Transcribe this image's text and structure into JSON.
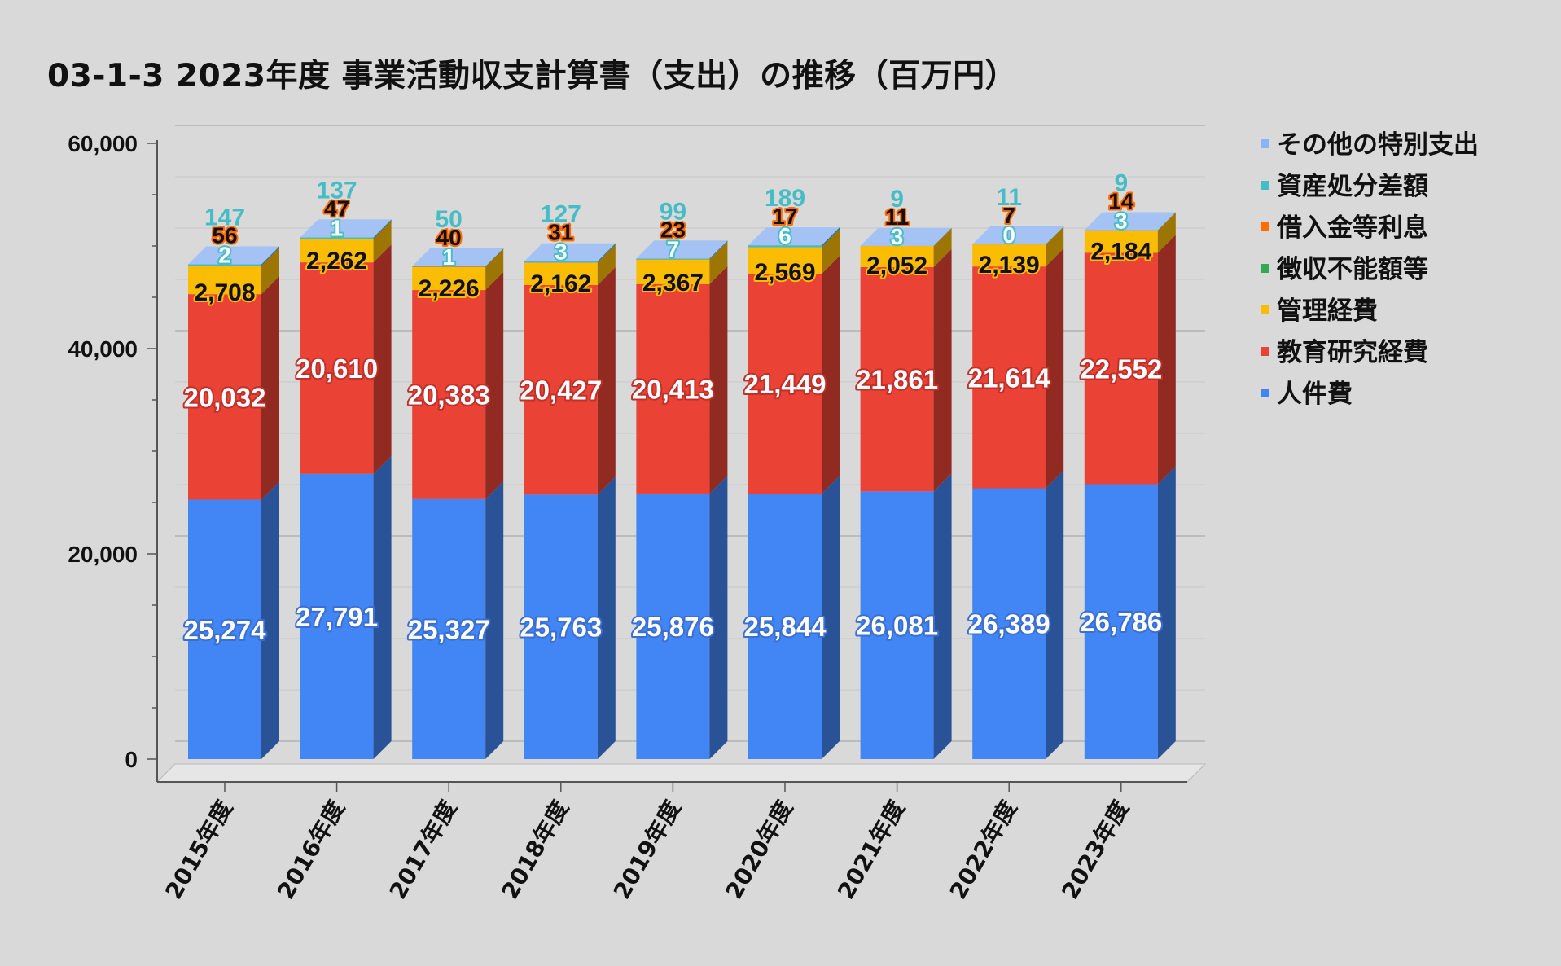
{
  "chart_data": {
    "type": "bar",
    "stacked": true,
    "title": "03-1-3 2023年度 事業活動収支計算書（支出）の推移（百万円）",
    "categories": [
      "2015年度",
      "2016年度",
      "2017年度",
      "2018年度",
      "2019年度",
      "2020年度",
      "2021年度",
      "2022年度",
      "2023年度"
    ],
    "ylim": [
      0,
      60000
    ],
    "yticks": [
      "0",
      "20,000",
      "40,000",
      "60,000"
    ],
    "grid": true,
    "legend_position": "right",
    "series": [
      {
        "name": "人件費",
        "color": "#4285f4",
        "values": [
          25274,
          27791,
          25327,
          25763,
          25876,
          25844,
          26081,
          26389,
          26786
        ],
        "labels": [
          "25,274",
          "27,791",
          "25,327",
          "25,763",
          "25,876",
          "25,844",
          "26,081",
          "26,389",
          "26,786"
        ]
      },
      {
        "name": "教育研究経費",
        "color": "#ea4335",
        "values": [
          20032,
          20610,
          20383,
          20427,
          20413,
          21449,
          21861,
          21614,
          22552
        ],
        "labels": [
          "20,032",
          "20,610",
          "20,383",
          "20,427",
          "20,413",
          "21,449",
          "21,861",
          "21,614",
          "22,552"
        ]
      },
      {
        "name": "管理経費",
        "color": "#fbbc04",
        "values": [
          2708,
          2262,
          2226,
          2162,
          2367,
          2569,
          2052,
          2139,
          2184
        ],
        "labels": [
          "2,708",
          "2,262",
          "2,226",
          "2,162",
          "2,367",
          "2,569",
          "2,052",
          "2,139",
          "2,184"
        ]
      },
      {
        "name": "徴収不能額等",
        "color": "#34a853",
        "values": [
          2,
          1,
          1,
          3,
          7,
          6,
          3,
          0,
          3
        ],
        "labels": [
          "2",
          "1",
          "1",
          "3",
          "7",
          "6",
          "3",
          "0",
          "3"
        ]
      },
      {
        "name": "借入金等利息",
        "color": "#ff6d01",
        "values": [
          56,
          47,
          40,
          31,
          23,
          17,
          11,
          7,
          14
        ],
        "labels": [
          "56",
          "47",
          "40",
          "31",
          "23",
          "17",
          "11",
          "7",
          "14"
        ]
      },
      {
        "name": "資産処分差額",
        "color": "#46bdc6",
        "values": [
          147,
          137,
          50,
          127,
          99,
          189,
          9,
          11,
          9
        ],
        "labels": [
          "147",
          "137",
          "50",
          "127",
          "99",
          "189",
          "9",
          "11",
          "9"
        ]
      },
      {
        "name": "その他の特別支出",
        "color": "#8ab4f8",
        "values": [
          0,
          0,
          0,
          0,
          0,
          0,
          0,
          0,
          0
        ],
        "labels": []
      }
    ],
    "legend_order": [
      "その他の特別支出",
      "資産処分差額",
      "借入金等利息",
      "徴収不能額等",
      "管理経費",
      "教育研究経費",
      "人件費"
    ]
  }
}
